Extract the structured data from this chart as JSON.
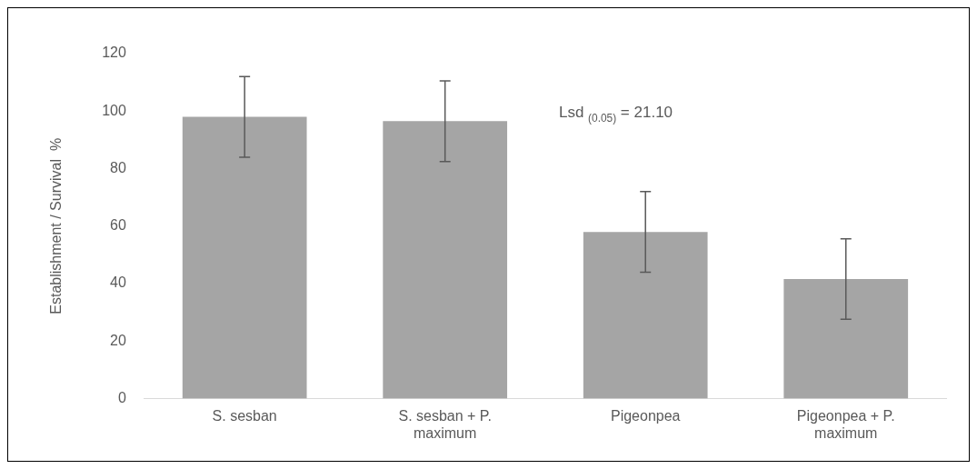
{
  "chart_data": {
    "type": "bar",
    "ylabel": "Establishment / Survival  %",
    "categories": [
      "S. sesban",
      "S. sesban + P. maximum",
      "Pigeonpea",
      "Pigeonpea + P. maximum"
    ],
    "values": [
      98,
      96.5,
      58,
      41.6
    ],
    "errors": [
      14,
      14,
      14,
      14
    ],
    "color": "#a5a5a5",
    "ylim": [
      0,
      120
    ],
    "yticks": [
      0,
      20,
      40,
      60,
      80,
      100,
      120
    ],
    "grid": false,
    "legend": false,
    "annotations": [
      {
        "text": "Lsd $_{(0.05)}$ = 21.10"
      }
    ]
  }
}
